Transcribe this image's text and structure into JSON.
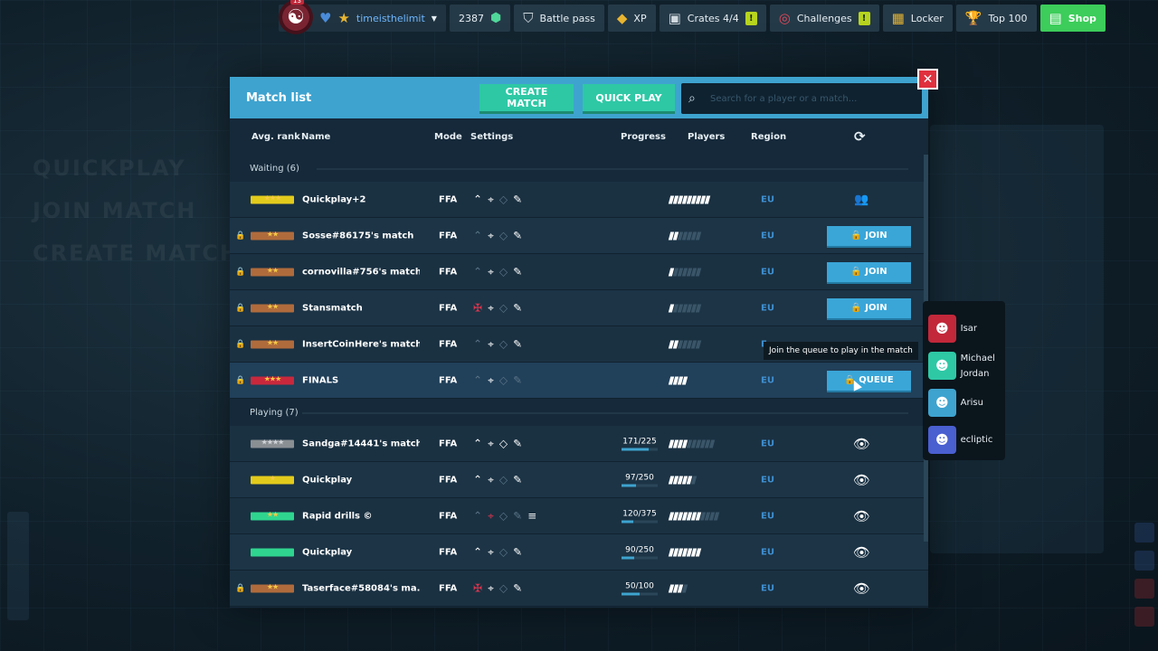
{
  "background": {
    "menu_items": [
      "QUICKPLAY",
      "JOIN MATCH",
      "CREATE MATCH"
    ]
  },
  "topbar": {
    "player": {
      "level": "13",
      "username": "timeisthelimit",
      "avatar_icon": "yin-yang-icon"
    },
    "coins": "2387",
    "battle_pass": "Battle pass",
    "xp": "XP",
    "crates": "Crates 4/4",
    "crates_badge": "!",
    "challenges": "Challenges",
    "challenges_badge": "!",
    "locker": "Locker",
    "top100": "Top 100",
    "shop": "Shop",
    "shop_color": "#3ccd5a"
  },
  "dialog": {
    "title": "Match list",
    "create_match": "CREATE MATCH",
    "quick_play": "QUICK PLAY",
    "search_placeholder": "Search for a player or a match...",
    "accent_color": "#3ea3cf"
  },
  "columns": {
    "rank": "Avg. rank",
    "name": "Name",
    "mode": "Mode",
    "settings": "Settings",
    "progress": "Progress",
    "players": "Players",
    "region": "Region"
  },
  "waiting": {
    "label": "Waiting (6)",
    "rows": [
      {
        "locked": false,
        "rank_color": "#e3cb1c",
        "stars": 3,
        "name": "Quickplay+2",
        "mode": "FFA",
        "settings": [
          "b",
          "b",
          "d",
          "b"
        ],
        "players_on": 9,
        "players_total": 9,
        "region": "EU",
        "action": "group"
      },
      {
        "locked": true,
        "rank_color": "#b06b3c",
        "stars": 2,
        "name": "Sosse#86175's match",
        "mode": "FFA",
        "settings": [
          "d",
          "b",
          "d",
          "b"
        ],
        "players_on": 2,
        "players_total": 7,
        "region": "EU",
        "action": "join",
        "action_label": "JOIN"
      },
      {
        "locked": true,
        "rank_color": "#b06b3c",
        "stars": 2,
        "name": "cornovilla#756's match",
        "mode": "FFA",
        "settings": [
          "d",
          "b",
          "d",
          "b"
        ],
        "players_on": 1,
        "players_total": 7,
        "region": "EU",
        "action": "join",
        "action_label": "JOIN"
      },
      {
        "locked": true,
        "rank_color": "#b06b3c",
        "stars": 2,
        "name": "Stansmatch",
        "mode": "FFA",
        "settings": [
          "r",
          "b",
          "d",
          "b"
        ],
        "players_on": 1,
        "players_total": 7,
        "region": "EU",
        "action": "join",
        "action_label": "JOIN"
      },
      {
        "locked": true,
        "rank_color": "#b06b3c",
        "stars": 2,
        "name": "InsertCoinHere's match",
        "mode": "FFA",
        "settings": [
          "d",
          "b",
          "d",
          "b"
        ],
        "players_on": 2,
        "players_total": 7,
        "region": "E",
        "action": "none"
      },
      {
        "locked": true,
        "rank_color": "#c9283c",
        "stars": 3,
        "name": "FINALS",
        "mode": "FFA",
        "settings": [
          "d",
          "b",
          "d",
          "d"
        ],
        "players_on": 4,
        "players_total": 4,
        "region": "EU",
        "action": "join",
        "action_label": "QUEUE"
      }
    ]
  },
  "playing": {
    "label": "Playing (7)",
    "rows": [
      {
        "locked": false,
        "rank_color": "#8a8f94",
        "stars": 4,
        "name": "Sandga#14441's match",
        "mode": "FFA",
        "settings": [
          "b",
          "b",
          "b",
          "b"
        ],
        "progress": "171/225",
        "progress_fraction": 0.76,
        "players_on": 4,
        "players_total": 10,
        "region": "EU"
      },
      {
        "locked": false,
        "rank_color": "#e3cb1c",
        "stars": 1,
        "name": "Quickplay",
        "mode": "FFA",
        "settings": [
          "b",
          "b",
          "d",
          "b"
        ],
        "progress": "97/250",
        "progress_fraction": 0.39,
        "players_on": 5,
        "players_total": 6,
        "region": "EU"
      },
      {
        "locked": false,
        "rank_color": "#2fd58f",
        "stars": 2,
        "name": "Rapid drills ©",
        "mode": "FFA",
        "settings": [
          "d",
          "r",
          "d",
          "d",
          "b"
        ],
        "progress": "120/375",
        "progress_fraction": 0.32,
        "players_on": 7,
        "players_total": 11,
        "region": "EU"
      },
      {
        "locked": false,
        "rank_color": "#2fd58f",
        "stars": 0,
        "name": "Quickplay",
        "mode": "FFA",
        "settings": [
          "b",
          "b",
          "d",
          "b"
        ],
        "progress": "90/250",
        "progress_fraction": 0.36,
        "players_on": 7,
        "players_total": 7,
        "region": "EU"
      },
      {
        "locked": true,
        "rank_color": "#b06b3c",
        "stars": 2,
        "name": "Taserface#58084's ma...",
        "mode": "FFA",
        "settings": [
          "r",
          "b",
          "d",
          "b"
        ],
        "progress": "50/100",
        "progress_fraction": 0.5,
        "players_on": 3,
        "players_total": 4,
        "region": "EU"
      }
    ]
  },
  "tooltip": "Join the queue to play in the match",
  "queue_players": [
    {
      "name": "Isar",
      "avatar_color": "#c2283a"
    },
    {
      "name": "Michael Jordan",
      "avatar_color": "#2ec8a5"
    },
    {
      "name": "Arisu",
      "avatar_color": "#3ea3cf"
    },
    {
      "name": "ecliptic",
      "avatar_color": "#4a5fd0"
    }
  ]
}
